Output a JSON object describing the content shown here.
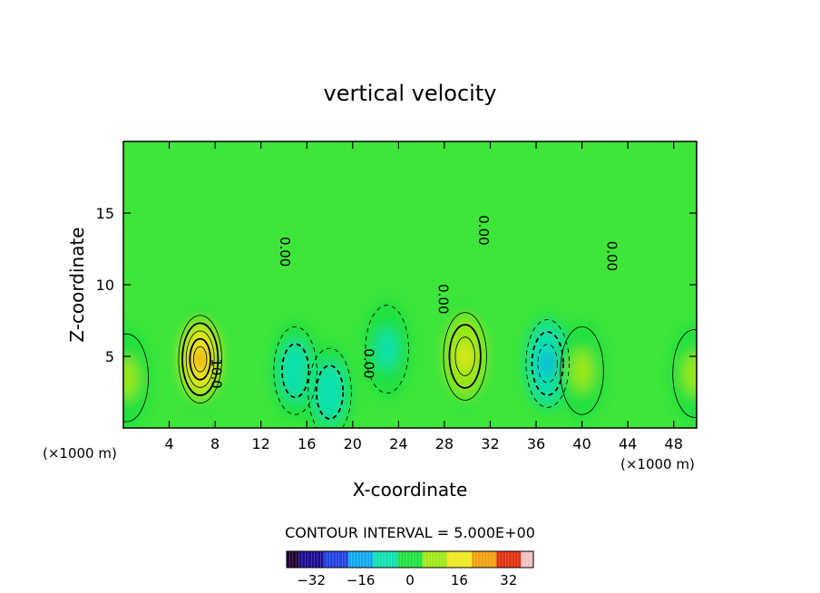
{
  "chart_data": {
    "type": "heatmap",
    "title": "vertical velocity",
    "xlabel": "X-coordinate",
    "ylabel": "Z-coordinate",
    "x_unit_label": "(×1000 m)",
    "xlim": [
      0,
      50
    ],
    "ylim": [
      0,
      20
    ],
    "x_ticks": [
      4,
      8,
      12,
      16,
      20,
      24,
      28,
      32,
      36,
      40,
      44,
      48
    ],
    "y_ticks": [
      5,
      10,
      15
    ],
    "contour_interval_text": "CONTOUR INTERVAL = 5.000E+00",
    "contour_labels": [
      {
        "text": "0.00",
        "x": 13.7,
        "y": 12.3
      },
      {
        "text": "0.00",
        "x": 31.0,
        "y": 13.8
      },
      {
        "text": "0.00",
        "x": 42.2,
        "y": 12.0
      },
      {
        "text": "0.00",
        "x": 27.5,
        "y": 9.0
      },
      {
        "text": "0.00",
        "x": 21.0,
        "y": 4.5
      },
      {
        "text": "10.0",
        "x": 7.7,
        "y": 3.8
      }
    ],
    "features": [
      {
        "kind": "updraft",
        "x": 6.7,
        "z": 4.8,
        "peak": 25
      },
      {
        "kind": "downdraft",
        "x": 15.0,
        "z": 4.0,
        "peak": -12
      },
      {
        "kind": "downdraft",
        "x": 18.0,
        "z": 2.5,
        "peak": -12
      },
      {
        "kind": "downdraft",
        "x": 23.0,
        "z": 5.5,
        "peak": -8
      },
      {
        "kind": "updraft",
        "x": 29.8,
        "z": 5.0,
        "peak": 18
      },
      {
        "kind": "downdraft",
        "x": 37.0,
        "z": 4.5,
        "peak": -16
      },
      {
        "kind": "updraft",
        "x": 40.0,
        "z": 4.0,
        "peak": 8
      },
      {
        "kind": "updraft",
        "x": 0.3,
        "z": 3.5,
        "peak": 8
      },
      {
        "kind": "updraft",
        "x": 49.8,
        "z": 3.8,
        "peak": 8
      }
    ],
    "colorbar": {
      "min": -40,
      "max": 40,
      "ticks": [
        -32,
        -16,
        0,
        16,
        32
      ],
      "tick_labels": [
        "−32",
        "−16",
        "0",
        "16",
        "32"
      ],
      "colors": [
        "#200030",
        "#1a0a90",
        "#2040e0",
        "#10a8f0",
        "#10e0b0",
        "#20e040",
        "#a0e818",
        "#f0e820",
        "#f0a010",
        "#e03010",
        "#f0c0c0"
      ]
    }
  }
}
